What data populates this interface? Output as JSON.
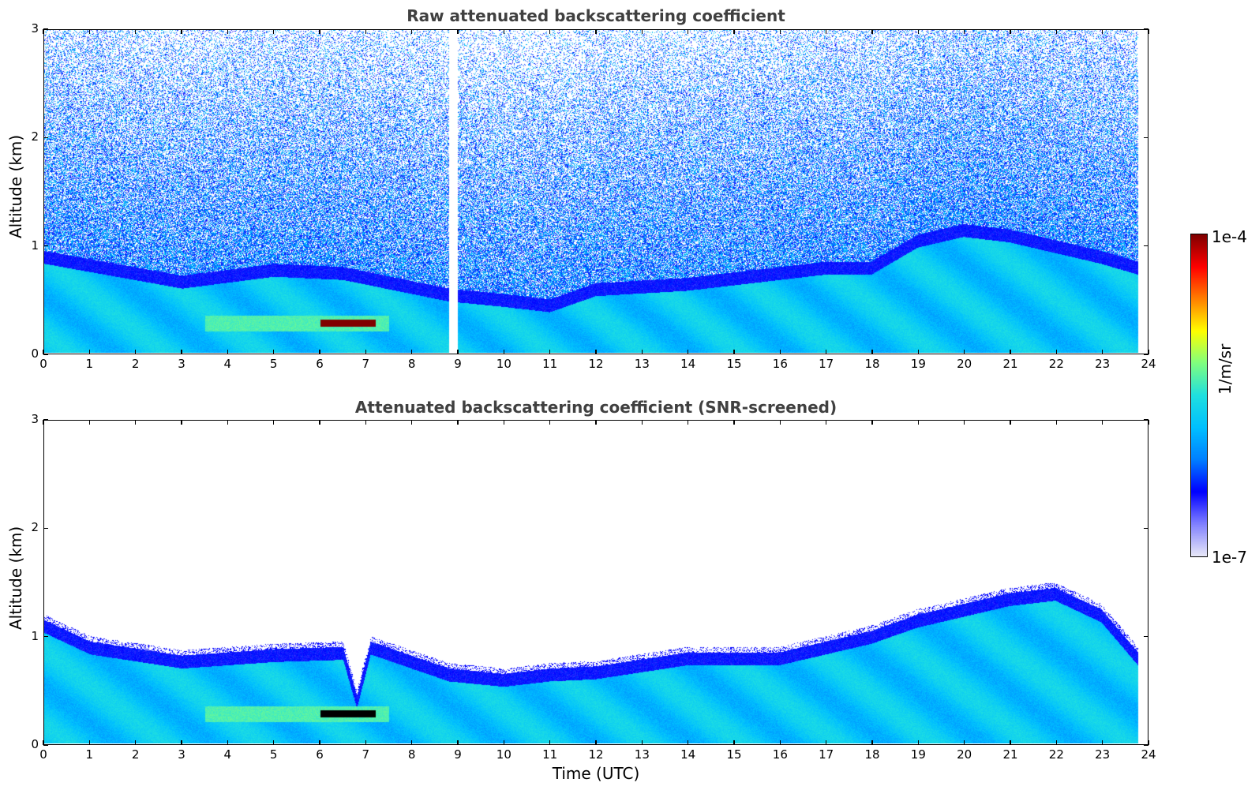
{
  "chart_data": [
    {
      "type": "heatmap",
      "title": "Raw attenuated backscattering coefficient",
      "xlabel": "",
      "ylabel": "Altitude (km)",
      "xlim": [
        0,
        24
      ],
      "ylim": [
        0,
        3
      ],
      "x_ticks": [
        0,
        1,
        2,
        3,
        4,
        5,
        6,
        7,
        8,
        9,
        10,
        11,
        12,
        13,
        14,
        15,
        16,
        17,
        18,
        19,
        20,
        21,
        22,
        23,
        24
      ],
      "y_ticks": [
        0,
        1,
        2,
        3
      ],
      "data_end_hour": 23.8,
      "gap_hours": [
        8.8,
        9.0
      ],
      "boundary_layer_top_km": [
        [
          0,
          0.95
        ],
        [
          3,
          0.72
        ],
        [
          5,
          0.83
        ],
        [
          6.5,
          0.8
        ],
        [
          8.8,
          0.6
        ],
        [
          10,
          0.55
        ],
        [
          11,
          0.5
        ],
        [
          12,
          0.65
        ],
        [
          14,
          0.7
        ],
        [
          16,
          0.8
        ],
        [
          17,
          0.85
        ],
        [
          18,
          0.85
        ],
        [
          19,
          1.1
        ],
        [
          20,
          1.2
        ],
        [
          21,
          1.15
        ],
        [
          22,
          1.05
        ],
        [
          23,
          0.95
        ],
        [
          23.8,
          0.85
        ]
      ],
      "high_backscatter_layer": {
        "x_range": [
          6.0,
          7.2
        ],
        "altitude_km": 0.28,
        "value": "1e-4"
      }
    },
    {
      "type": "heatmap",
      "title": "Attenuated backscattering coefficient (SNR-screened)",
      "xlabel": "Time (UTC)",
      "ylabel": "Altitude (km)",
      "xlim": [
        0,
        24
      ],
      "ylim": [
        0,
        3
      ],
      "x_ticks": [
        0,
        1,
        2,
        3,
        4,
        5,
        6,
        7,
        8,
        9,
        10,
        11,
        12,
        13,
        14,
        15,
        16,
        17,
        18,
        19,
        20,
        21,
        22,
        23,
        24
      ],
      "y_ticks": [
        0,
        1,
        2,
        3
      ],
      "data_end_hour": 23.8,
      "boundary_layer_top_km": [
        [
          0,
          1.15
        ],
        [
          1,
          0.95
        ],
        [
          3,
          0.82
        ],
        [
          5,
          0.88
        ],
        [
          6.5,
          0.9
        ],
        [
          6.8,
          0.45
        ],
        [
          7.1,
          0.95
        ],
        [
          8.8,
          0.7
        ],
        [
          10,
          0.65
        ],
        [
          11,
          0.7
        ],
        [
          12,
          0.72
        ],
        [
          14,
          0.85
        ],
        [
          16,
          0.85
        ],
        [
          17,
          0.95
        ],
        [
          18,
          1.05
        ],
        [
          19,
          1.2
        ],
        [
          20,
          1.3
        ],
        [
          21,
          1.4
        ],
        [
          22,
          1.45
        ],
        [
          23,
          1.25
        ],
        [
          23.8,
          0.85
        ]
      ],
      "high_backscatter_layer": {
        "x_range": [
          6.0,
          7.2
        ],
        "altitude_km": 0.28,
        "value": "below-range"
      }
    }
  ],
  "colorbar": {
    "label": "1/m/sr",
    "min_label": "1e-7",
    "max_label": "1e-4",
    "scale": "log",
    "colors": [
      "#e8e8f8",
      "#8080ff",
      "#0000ff",
      "#0080ff",
      "#00c0ff",
      "#20e0e0",
      "#80ff80",
      "#ffff00",
      "#ff8000",
      "#ff0000",
      "#800000"
    ]
  }
}
